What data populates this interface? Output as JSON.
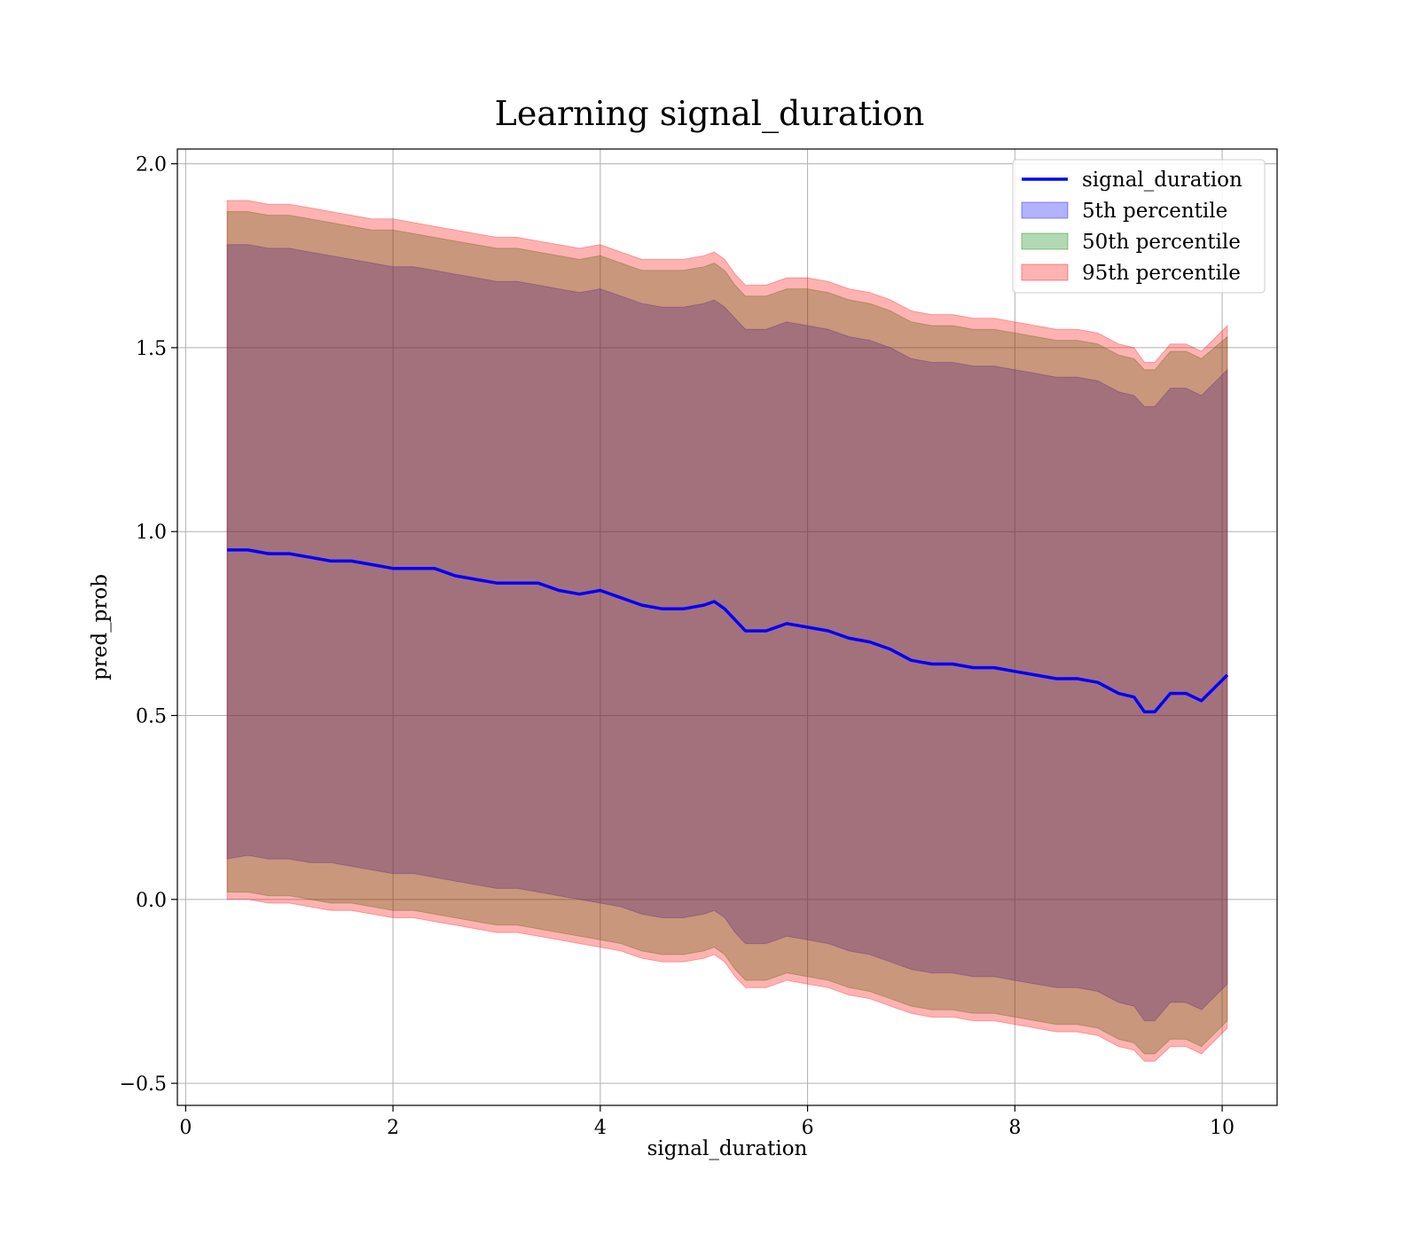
{
  "chart_data": {
    "type": "area",
    "title": "Learning signal_duration",
    "xlabel": "signal_duration",
    "ylabel": "pred_prob",
    "xlim": [
      -0.08,
      10.53
    ],
    "ylim": [
      -0.56,
      2.04
    ],
    "xticks": [
      0,
      2,
      4,
      6,
      8,
      10
    ],
    "xtick_labels": [
      "0",
      "2",
      "4",
      "6",
      "8",
      "10"
    ],
    "yticks": [
      -0.5,
      0.0,
      0.5,
      1.0,
      1.5,
      2.0
    ],
    "ytick_labels": [
      "−0.5",
      "0.0",
      "0.5",
      "1.0",
      "1.5",
      "2.0"
    ],
    "grid": true,
    "legend_position": "upper right",
    "x": [
      0.4,
      0.6,
      0.8,
      1.0,
      1.2,
      1.4,
      1.6,
      1.8,
      2.0,
      2.2,
      2.4,
      2.6,
      2.8,
      3.0,
      3.2,
      3.4,
      3.6,
      3.8,
      4.0,
      4.2,
      4.4,
      4.6,
      4.8,
      5.0,
      5.1,
      5.2,
      5.3,
      5.4,
      5.6,
      5.8,
      6.0,
      6.2,
      6.4,
      6.6,
      6.8,
      7.0,
      7.2,
      7.4,
      7.6,
      7.8,
      8.0,
      8.2,
      8.4,
      8.6,
      8.8,
      9.0,
      9.15,
      9.25,
      9.35,
      9.5,
      9.65,
      9.8,
      10.05
    ],
    "series": [
      {
        "name": "signal_duration",
        "kind": "line",
        "color": "#0000ff",
        "values": [
          0.95,
          0.95,
          0.94,
          0.94,
          0.93,
          0.92,
          0.92,
          0.91,
          0.9,
          0.9,
          0.9,
          0.88,
          0.87,
          0.86,
          0.86,
          0.86,
          0.84,
          0.83,
          0.84,
          0.82,
          0.8,
          0.79,
          0.79,
          0.8,
          0.81,
          0.79,
          0.76,
          0.73,
          0.73,
          0.75,
          0.74,
          0.73,
          0.71,
          0.7,
          0.68,
          0.65,
          0.64,
          0.64,
          0.63,
          0.63,
          0.62,
          0.61,
          0.6,
          0.6,
          0.59,
          0.56,
          0.55,
          0.51,
          0.51,
          0.56,
          0.56,
          0.54,
          0.61
        ]
      },
      {
        "name": "5th percentile",
        "kind": "band",
        "color": "#0000ff",
        "opacity": 0.3,
        "lower": [
          0.11,
          0.12,
          0.11,
          0.11,
          0.1,
          0.1,
          0.09,
          0.08,
          0.07,
          0.07,
          0.06,
          0.05,
          0.04,
          0.03,
          0.03,
          0.02,
          0.01,
          0.0,
          -0.01,
          -0.02,
          -0.04,
          -0.05,
          -0.05,
          -0.04,
          -0.03,
          -0.05,
          -0.09,
          -0.12,
          -0.12,
          -0.1,
          -0.11,
          -0.12,
          -0.14,
          -0.15,
          -0.17,
          -0.19,
          -0.2,
          -0.2,
          -0.21,
          -0.21,
          -0.22,
          -0.23,
          -0.24,
          -0.24,
          -0.25,
          -0.28,
          -0.29,
          -0.33,
          -0.33,
          -0.28,
          -0.28,
          -0.3,
          -0.23
        ],
        "upper": [
          1.78,
          1.78,
          1.77,
          1.77,
          1.76,
          1.75,
          1.74,
          1.73,
          1.72,
          1.72,
          1.71,
          1.7,
          1.69,
          1.68,
          1.68,
          1.67,
          1.66,
          1.65,
          1.66,
          1.64,
          1.62,
          1.61,
          1.61,
          1.62,
          1.63,
          1.61,
          1.58,
          1.55,
          1.55,
          1.57,
          1.56,
          1.55,
          1.53,
          1.52,
          1.5,
          1.47,
          1.46,
          1.46,
          1.45,
          1.45,
          1.44,
          1.43,
          1.42,
          1.42,
          1.41,
          1.38,
          1.37,
          1.34,
          1.34,
          1.39,
          1.39,
          1.37,
          1.44
        ]
      },
      {
        "name": "50th percentile",
        "kind": "band",
        "color": "#008000",
        "opacity": 0.3,
        "lower": [
          0.02,
          0.02,
          0.01,
          0.01,
          0.0,
          -0.01,
          -0.01,
          -0.02,
          -0.03,
          -0.03,
          -0.04,
          -0.05,
          -0.06,
          -0.07,
          -0.07,
          -0.08,
          -0.09,
          -0.1,
          -0.11,
          -0.12,
          -0.14,
          -0.15,
          -0.15,
          -0.14,
          -0.13,
          -0.15,
          -0.19,
          -0.22,
          -0.22,
          -0.2,
          -0.21,
          -0.22,
          -0.24,
          -0.25,
          -0.27,
          -0.29,
          -0.3,
          -0.3,
          -0.31,
          -0.31,
          -0.32,
          -0.33,
          -0.34,
          -0.34,
          -0.35,
          -0.38,
          -0.39,
          -0.42,
          -0.42,
          -0.38,
          -0.38,
          -0.4,
          -0.33
        ],
        "upper": [
          1.87,
          1.87,
          1.86,
          1.86,
          1.85,
          1.84,
          1.83,
          1.82,
          1.82,
          1.81,
          1.8,
          1.79,
          1.78,
          1.77,
          1.77,
          1.76,
          1.75,
          1.74,
          1.75,
          1.73,
          1.71,
          1.71,
          1.71,
          1.72,
          1.73,
          1.71,
          1.67,
          1.64,
          1.64,
          1.66,
          1.66,
          1.65,
          1.63,
          1.62,
          1.6,
          1.57,
          1.56,
          1.56,
          1.55,
          1.55,
          1.54,
          1.53,
          1.52,
          1.52,
          1.51,
          1.48,
          1.47,
          1.44,
          1.44,
          1.49,
          1.49,
          1.47,
          1.53
        ]
      },
      {
        "name": "95th percentile",
        "kind": "band",
        "color": "#ff0000",
        "opacity": 0.3,
        "lower": [
          0.0,
          0.0,
          -0.01,
          -0.01,
          -0.02,
          -0.03,
          -0.03,
          -0.04,
          -0.05,
          -0.05,
          -0.06,
          -0.07,
          -0.08,
          -0.09,
          -0.09,
          -0.1,
          -0.11,
          -0.12,
          -0.13,
          -0.14,
          -0.16,
          -0.17,
          -0.17,
          -0.16,
          -0.15,
          -0.17,
          -0.21,
          -0.24,
          -0.24,
          -0.22,
          -0.23,
          -0.24,
          -0.26,
          -0.27,
          -0.29,
          -0.31,
          -0.32,
          -0.32,
          -0.33,
          -0.33,
          -0.34,
          -0.35,
          -0.36,
          -0.36,
          -0.37,
          -0.4,
          -0.41,
          -0.44,
          -0.44,
          -0.4,
          -0.4,
          -0.42,
          -0.35
        ],
        "upper": [
          1.9,
          1.9,
          1.89,
          1.89,
          1.88,
          1.87,
          1.86,
          1.85,
          1.85,
          1.84,
          1.83,
          1.82,
          1.81,
          1.8,
          1.8,
          1.79,
          1.78,
          1.77,
          1.78,
          1.76,
          1.74,
          1.74,
          1.74,
          1.75,
          1.76,
          1.74,
          1.7,
          1.67,
          1.67,
          1.69,
          1.69,
          1.68,
          1.66,
          1.65,
          1.63,
          1.6,
          1.59,
          1.59,
          1.58,
          1.58,
          1.57,
          1.56,
          1.55,
          1.55,
          1.54,
          1.51,
          1.5,
          1.46,
          1.46,
          1.51,
          1.51,
          1.49,
          1.56
        ]
      }
    ]
  }
}
